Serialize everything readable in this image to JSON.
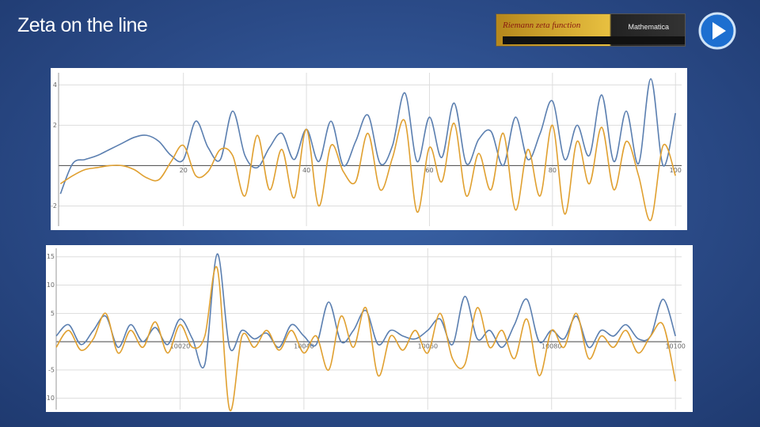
{
  "slide_title": "Zeta on the line",
  "thumbnail": {
    "heading": "Riemann zeta function",
    "brand": "Mathematica"
  },
  "chart_data": [
    {
      "type": "line",
      "x": [
        0,
        2,
        4,
        6,
        8,
        10,
        12,
        14,
        16,
        18,
        20,
        22,
        24,
        26,
        28,
        30,
        32,
        34,
        36,
        38,
        40,
        42,
        44,
        46,
        48,
        50,
        52,
        54,
        56,
        58,
        60,
        62,
        64,
        66,
        68,
        70,
        72,
        74,
        76,
        78,
        80,
        82,
        84,
        86,
        88,
        90,
        92,
        94,
        96,
        98,
        100
      ],
      "series": [
        {
          "color": "#5b7fb0",
          "values": [
            -1.4,
            0.1,
            0.3,
            0.5,
            0.8,
            1.1,
            1.4,
            1.5,
            1.2,
            0.5,
            0.3,
            2.2,
            0.9,
            0.3,
            2.7,
            0.5,
            -0.1,
            0.9,
            1.6,
            0.3,
            1.8,
            0.2,
            2.2,
            0.0,
            1.2,
            2.5,
            0.1,
            1.0,
            3.6,
            0.2,
            2.4,
            0.4,
            3.1,
            0.1,
            1.3,
            1.7,
            0.0,
            2.4,
            0.3,
            1.6,
            3.2,
            0.3,
            2.0,
            0.5,
            3.5,
            0.2,
            2.7,
            0.1,
            4.3,
            0.0,
            2.6
          ]
        },
        {
          "color": "#e0a030",
          "values": [
            -0.9,
            -0.5,
            -0.2,
            -0.1,
            0,
            0,
            -0.2,
            -0.6,
            -0.7,
            0.2,
            1.0,
            -0.5,
            -0.3,
            0.8,
            0.5,
            -1.5,
            1.5,
            -1.2,
            0.8,
            -1.6,
            1.8,
            -2.0,
            1.0,
            -0.3,
            -0.8,
            1.6,
            -1.2,
            0.4,
            2.2,
            -2.3,
            0.9,
            -0.8,
            2.1,
            -1.5,
            0.6,
            -1.2,
            1.6,
            -2.2,
            0.8,
            -1.5,
            2.0,
            -2.4,
            1.2,
            -0.9,
            1.9,
            -1.2,
            1.2,
            -0.5,
            -2.7,
            1.0,
            -0.5
          ]
        }
      ],
      "xlim": [
        -0.3,
        101
      ],
      "ylim": [
        -3,
        4.6
      ],
      "xticks": [
        20,
        40,
        60,
        80,
        100
      ],
      "yticks": [
        -2,
        2,
        4
      ],
      "grid": true
    },
    {
      "type": "line",
      "x": [
        10000,
        10002,
        10004,
        10006,
        10008,
        10010,
        10012,
        10014,
        10016,
        10018,
        10020,
        10022,
        10024,
        10026,
        10028,
        10030,
        10032,
        10034,
        10036,
        10038,
        10040,
        10042,
        10044,
        10046,
        10048,
        10050,
        10052,
        10054,
        10056,
        10058,
        10060,
        10062,
        10064,
        10066,
        10068,
        10070,
        10072,
        10074,
        10076,
        10078,
        10080,
        10082,
        10084,
        10086,
        10088,
        10090,
        10092,
        10094,
        10096,
        10098,
        10100
      ],
      "series": [
        {
          "color": "#5b7fb0",
          "values": [
            1,
            3,
            -0.5,
            2,
            4.5,
            -1,
            3,
            0,
            2.5,
            -0.5,
            4,
            0.5,
            -4,
            15.5,
            -1,
            2,
            0.5,
            1.5,
            -1,
            3,
            1,
            -0.5,
            7,
            0,
            2,
            5.5,
            -0.5,
            2,
            1,
            0.5,
            2,
            4,
            -0.5,
            8,
            0.5,
            2,
            -1,
            3,
            7.5,
            0,
            2,
            0.5,
            4.5,
            -1,
            2,
            1,
            3,
            0.5,
            1,
            7.5,
            1
          ]
        },
        {
          "color": "#e0a030",
          "values": [
            -1,
            2,
            -1.5,
            0.5,
            5,
            -2,
            2,
            -1,
            3.5,
            -2,
            3,
            -1,
            1,
            13,
            -12,
            1,
            -1,
            2,
            -1.5,
            2,
            -2,
            1,
            -5,
            4.5,
            -1,
            6,
            -6,
            1,
            -1.5,
            2,
            -2,
            5,
            -3,
            -4,
            6,
            -1,
            2,
            -3,
            4,
            -6,
            2,
            -1,
            5,
            -3,
            1,
            -1,
            2,
            -2,
            1,
            3,
            -7
          ]
        }
      ],
      "xlim": [
        10000,
        10101
      ],
      "ylim": [
        -12,
        16.5
      ],
      "xticks": [
        10020,
        10040,
        10060,
        10080,
        10100
      ],
      "yticks": [
        -10,
        -5,
        5,
        10,
        15
      ],
      "grid": true
    }
  ]
}
